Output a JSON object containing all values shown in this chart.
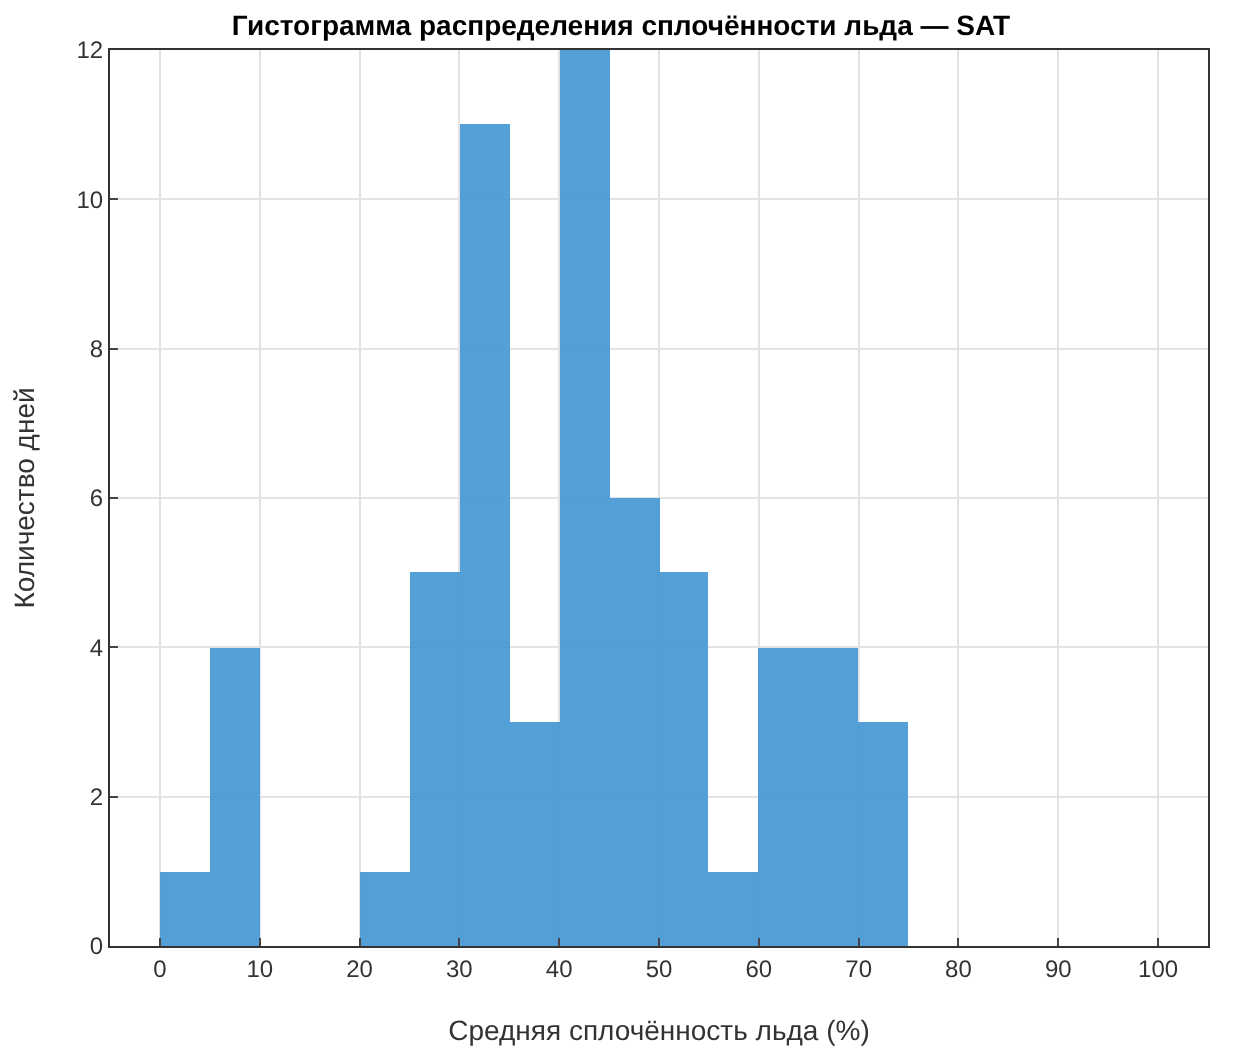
{
  "chart_data": {
    "type": "histogram",
    "title": "Гистограмма распределения сплочённости льда — SAT",
    "xlabel": "Средняя сплочённость льда (%)",
    "ylabel": "Количество дней",
    "bins": [
      0,
      5,
      10,
      15,
      20,
      25,
      30,
      35,
      40,
      45,
      50,
      55,
      60,
      65,
      70,
      75
    ],
    "values": [
      1,
      4,
      0,
      0,
      1,
      5,
      11,
      3,
      12,
      6,
      5,
      1,
      4,
      4,
      3
    ],
    "color": "#4a9ad6",
    "xlim": [
      -5,
      105
    ],
    "xticks": [
      0,
      10,
      20,
      30,
      40,
      50,
      60,
      70,
      80,
      90,
      100
    ],
    "ylim": [
      0,
      12
    ],
    "yticks": [
      0,
      2,
      4,
      6,
      8,
      10,
      12
    ],
    "grid": true
  }
}
